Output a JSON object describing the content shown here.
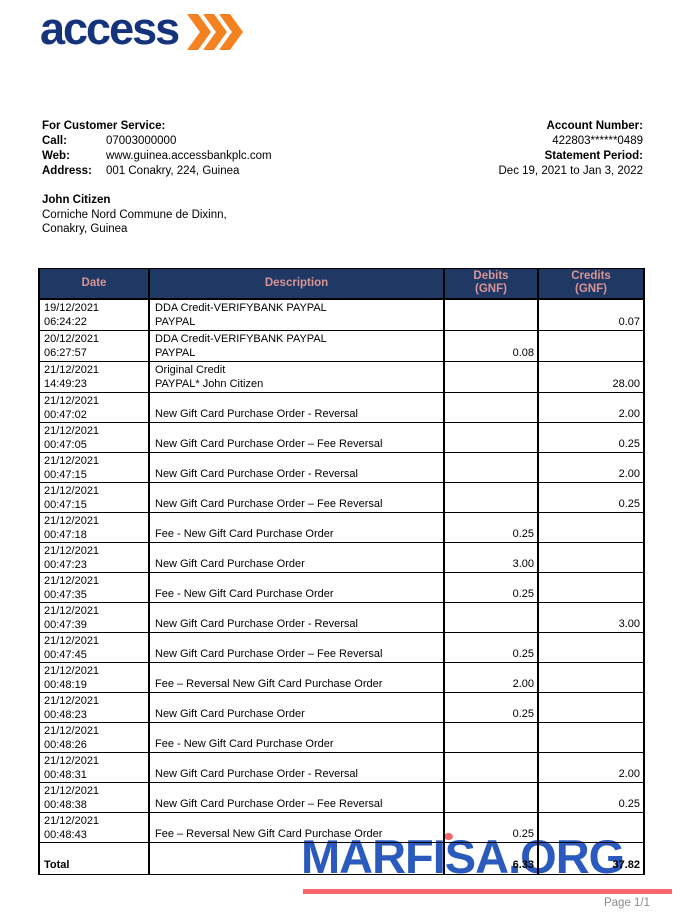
{
  "colors": {
    "header_bg": "#1f3864",
    "header_text": "#d99594",
    "logo_blue": "#14337b",
    "logo_orange": "#f58220",
    "watermark_blue": "#2b5abe",
    "watermark_red": "#f9676e"
  },
  "brand": {
    "logo_text": "access",
    "chevrons_icon": "triple-chevron-right"
  },
  "customer_service": {
    "heading": "For Customer Service:",
    "rows": [
      {
        "label": "Call:",
        "value": "07003000000"
      },
      {
        "label": "Web:",
        "value": "www.guinea.accessbankplc.com"
      },
      {
        "label": "Address:",
        "value": "001 Conakry, 224, Guinea"
      }
    ]
  },
  "account_info": {
    "account_number_label": "Account Number:",
    "account_number": "422803******0489",
    "statement_period_label": "Statement Period:",
    "statement_period": "Dec 19, 2021 to Jan 3, 2022"
  },
  "customer": {
    "name": "John Citizen",
    "address_line1": "Corniche Nord Commune de Dixinn,",
    "address_line2": "Conakry, Guinea"
  },
  "table": {
    "headers": {
      "date": "Date",
      "description": "Description",
      "debits_line1": "Debits",
      "debits_line2": "(GNF)",
      "credits_line1": "Credits",
      "credits_line2": "(GNF)"
    },
    "rows": [
      {
        "date": "19/12/2021",
        "time": "06:24:22",
        "description": [
          "DDA Credit-VERIFYBANK PAYPAL",
          "PAYPAL"
        ],
        "debit": "",
        "credit": "0.07"
      },
      {
        "date": "20/12/2021",
        "time": "06:27:57",
        "description": [
          "DDA Credit-VERIFYBANK PAYPAL",
          "PAYPAL"
        ],
        "debit": "0.08",
        "credit": ""
      },
      {
        "date": "21/12/2021",
        "time": "14:49:23",
        "description": [
          "Original Credit",
          "PAYPAL* John Citizen"
        ],
        "debit": "",
        "credit": "28.00"
      },
      {
        "date": "21/12/2021",
        "time": "00:47:02",
        "description": [
          "New Gift Card Purchase Order - Reversal"
        ],
        "debit": "",
        "credit": "2.00"
      },
      {
        "date": "21/12/2021",
        "time": "00:47:05",
        "description": [
          "New Gift Card Purchase Order – Fee Reversal"
        ],
        "debit": "",
        "credit": "0.25"
      },
      {
        "date": "21/12/2021",
        "time": "00:47:15",
        "description": [
          "New Gift Card Purchase Order - Reversal"
        ],
        "debit": "",
        "credit": "2.00"
      },
      {
        "date": "21/12/2021",
        "time": "00:47:15",
        "description": [
          "New Gift Card Purchase Order – Fee Reversal"
        ],
        "debit": "",
        "credit": "0.25"
      },
      {
        "date": "21/12/2021",
        "time": "00:47:18",
        "description": [
          "Fee - New Gift Card Purchase Order"
        ],
        "debit": "0.25",
        "credit": ""
      },
      {
        "date": "21/12/2021",
        "time": "00:47:23",
        "description": [
          "New Gift Card Purchase Order"
        ],
        "debit": "3.00",
        "credit": ""
      },
      {
        "date": "21/12/2021",
        "time": "00:47:35",
        "description": [
          "Fee - New Gift Card Purchase Order"
        ],
        "debit": "0.25",
        "credit": ""
      },
      {
        "date": "21/12/2021",
        "time": "00:47:39",
        "description": [
          "New Gift Card Purchase Order - Reversal"
        ],
        "debit": "",
        "credit": "3.00"
      },
      {
        "date": "21/12/2021",
        "time": "00:47:45",
        "description": [
          "New Gift Card Purchase Order – Fee Reversal"
        ],
        "debit": "0.25",
        "credit": ""
      },
      {
        "date": "21/12/2021",
        "time": "00:48:19",
        "description": [
          "Fee – Reversal New Gift Card Purchase Order"
        ],
        "debit": "2.00",
        "credit": ""
      },
      {
        "date": "21/12/2021",
        "time": "00:48:23",
        "description": [
          "New Gift Card Purchase Order"
        ],
        "debit": "0.25",
        "credit": ""
      },
      {
        "date": "21/12/2021",
        "time": "00:48:26",
        "description": [
          "Fee - New Gift Card Purchase Order"
        ],
        "debit": "",
        "credit": ""
      },
      {
        "date": "21/12/2021",
        "time": "00:48:31",
        "description": [
          "New Gift Card Purchase Order - Reversal"
        ],
        "debit": "",
        "credit": "2.00"
      },
      {
        "date": "21/12/2021",
        "time": "00:48:38",
        "description": [
          "New Gift Card Purchase Order – Fee Reversal"
        ],
        "debit": "",
        "credit": "0.25"
      },
      {
        "date": "21/12/2021",
        "time": "00:48:43",
        "description": [
          "Fee – Reversal New Gift Card Purchase Order"
        ],
        "debit": "0.25",
        "credit": ""
      }
    ],
    "total": {
      "label": "Total",
      "debit": "6.33",
      "credit": "37.82"
    }
  },
  "watermark": {
    "text": "MARFISA.ORG"
  },
  "footer": {
    "page_label": "Page 1/1"
  }
}
